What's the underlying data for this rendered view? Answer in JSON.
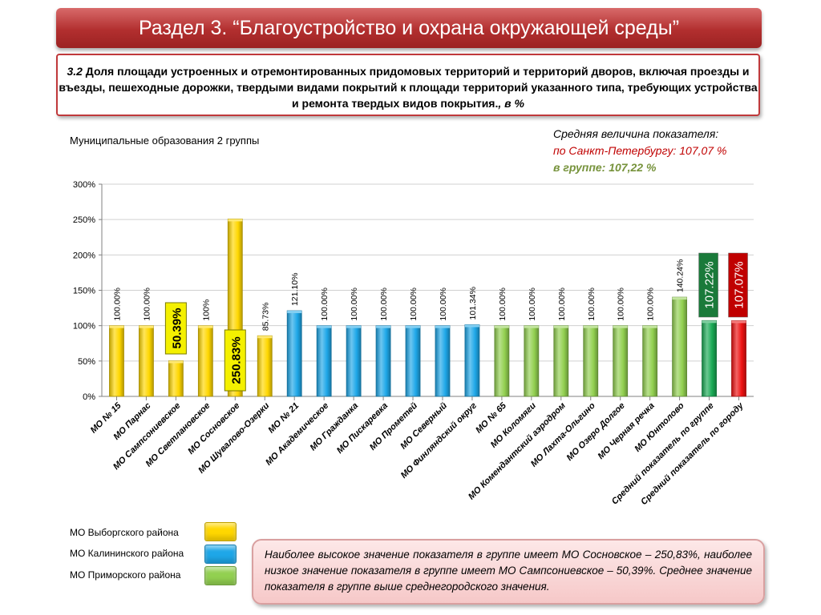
{
  "header": {
    "title": "Раздел 3. “Благоустройство и охрана окружающей среды”"
  },
  "description": {
    "number": "3.2",
    "text": "Доля площади устроенных и отремонтированных придомовых территорий и территорий дворов, включая проезды и въезды, пешеходные дорожки, твердыми видами покрытий к площади территорий указанного типа, требующих устройства и ремонта твердых видов покрытия.",
    "unit": ", в %"
  },
  "group_title": "Муниципальные образования 2 группы",
  "average": {
    "title": "Средняя величина показателя:",
    "spb": "по Санкт-Петербургу: 107,07 %",
    "group": "в группе:  107,22 %"
  },
  "legend": [
    {
      "label": "МО Выборгского района",
      "color": "#ffd700"
    },
    {
      "label": "МО Калининского района",
      "color": "#1ea7e8"
    },
    {
      "label": "МО Приморского района",
      "color": "#92d050"
    }
  ],
  "note": "Наиболее высокое значение показателя в группе имеет МО Сосновское – 250,83%, наиболее низкое значение показателя в группе имеет МО Сампсониевское – 50,39%. Среднее значение показателя в группе выше среднегородского значения.",
  "chart_data": {
    "type": "bar",
    "ylim": [
      0,
      300
    ],
    "yticks": [
      "0%",
      "50%",
      "100%",
      "150%",
      "200%",
      "250%",
      "300%"
    ],
    "gridlines": true,
    "categories": [
      "МО № 15",
      "МО Парнас",
      "МО Сампсониевское",
      "МО Светлановское",
      "МО Сосновское",
      "МО Шувалово-Озерки",
      "МО № 21",
      "МО Академическое",
      "МО Гражданка",
      "МО Пискаревка",
      "МО Прометей",
      "МО Северный",
      "МО Финляндский округ",
      "МО № 65",
      "МО Коломяги",
      "МО Комендантский аэродром",
      "МО Лахта-Ольгино",
      "МО Озеро Долгое",
      "МО Черная речка",
      "МО Юнтолово",
      "Средний показатель по группе",
      "Средний показатель по городу"
    ],
    "values": [
      100,
      100,
      50.39,
      100,
      250.83,
      85.73,
      121.1,
      100,
      100,
      100,
      100,
      100,
      101.34,
      100,
      100,
      100,
      100,
      100,
      100,
      140.24,
      107.22,
      107.07
    ],
    "labels": [
      "100.00%",
      "100.00%",
      "50.39%",
      "100%",
      "250.83%",
      "85.73%",
      "121.10%",
      "100.00%",
      "100.00%",
      "100.00%",
      "100.00%",
      "100.00%",
      "101.34%",
      "100.00%",
      "100.00%",
      "100.00%",
      "100.00%",
      "100.00%",
      "100.00%",
      "140.24%",
      "107.22%",
      "107.07%"
    ],
    "colors": [
      "#ffd700",
      "#ffd700",
      "#ffd700",
      "#ffd700",
      "#ffd700",
      "#ffd700",
      "#1ea7e8",
      "#1ea7e8",
      "#1ea7e8",
      "#1ea7e8",
      "#1ea7e8",
      "#1ea7e8",
      "#1ea7e8",
      "#92d050",
      "#92d050",
      "#92d050",
      "#92d050",
      "#92d050",
      "#92d050",
      "#92d050",
      "#1aaa55",
      "#ee1111"
    ],
    "highlight": {
      "min_index": 2,
      "max_index": 4,
      "highlight_color": "#f4f000",
      "group_avg_bg": "#1a7a3a",
      "city_avg_bg": "#c00000"
    }
  }
}
